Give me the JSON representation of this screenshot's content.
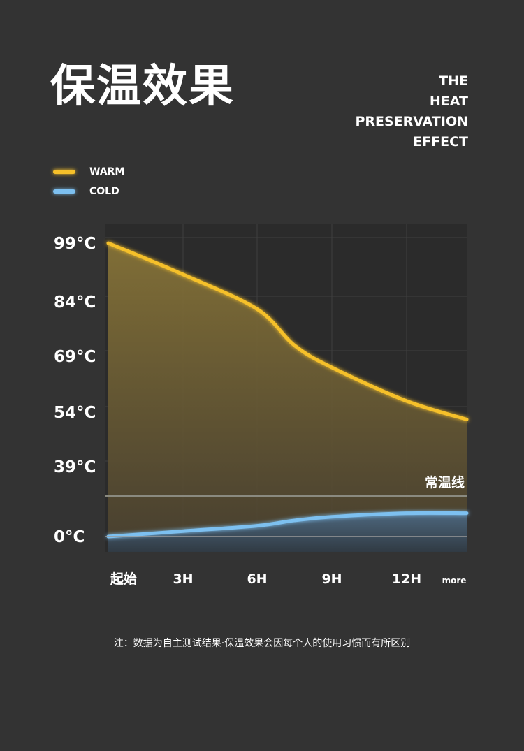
{
  "title_cn": "保温效果",
  "title_en": [
    "THE",
    "HEAT",
    "PRESERVATION",
    "EFFECT"
  ],
  "chart_data": {
    "type": "area",
    "categories": [
      "起始",
      "3H",
      "6H",
      "9H",
      "12H",
      "more"
    ],
    "yticks": [
      "99°C",
      "84°C",
      "69°C",
      "54°C",
      "39°C",
      "0°C"
    ],
    "series": [
      {
        "name": "WARM",
        "color": "#f5c02a",
        "x": [
          0,
          1,
          2,
          2.5,
          3,
          4,
          5
        ],
        "values": [
          99,
          91,
          82,
          72,
          66,
          57,
          52
        ]
      },
      {
        "name": "COLD",
        "color": "#7dc0f0",
        "x": [
          0,
          1,
          2,
          2.5,
          3,
          4,
          5
        ],
        "values": [
          0,
          3,
          6,
          9,
          11,
          13,
          13
        ]
      }
    ],
    "reference_line": {
      "label": "常温线"
    },
    "grid": true,
    "legend_position": "top-left"
  },
  "note": "注：数据为自主测试结果·保温效果会因每个人的使用习惯而有所区别"
}
